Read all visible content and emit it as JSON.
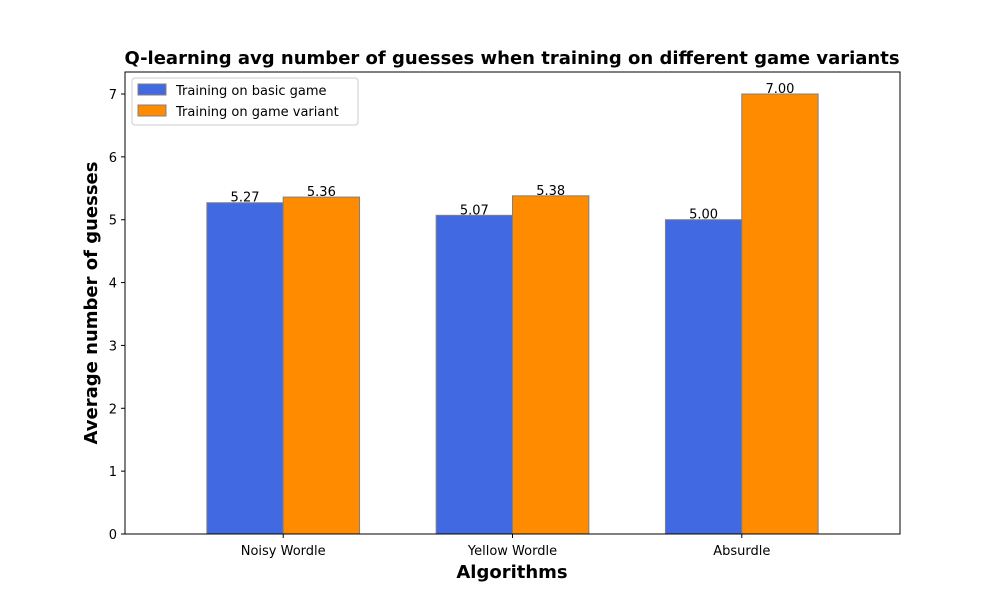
{
  "chart_data": {
    "type": "bar",
    "title": "Q-learning avg number of guesses when training on different game variants",
    "xlabel": "Algorithms",
    "ylabel": "Average number of guesses",
    "categories": [
      "Noisy Wordle",
      "Yellow Wordle",
      "Absurdle"
    ],
    "series": [
      {
        "name": "Training on basic game",
        "values": [
          5.27,
          5.07,
          5.0
        ],
        "labels": [
          "5.27",
          "5.07",
          "5.00"
        ],
        "color": "#4169E1"
      },
      {
        "name": "Training on game variant",
        "values": [
          5.36,
          5.38,
          7.0
        ],
        "labels": [
          "5.36",
          "5.38",
          "7.00"
        ],
        "color": "#FF8C00"
      }
    ],
    "yticks": [
      0,
      1,
      2,
      3,
      4,
      5,
      6,
      7
    ],
    "ylim": [
      0,
      7.35
    ],
    "grid": false,
    "legend": "upper-left",
    "bar_edge_color": "#808080"
  }
}
